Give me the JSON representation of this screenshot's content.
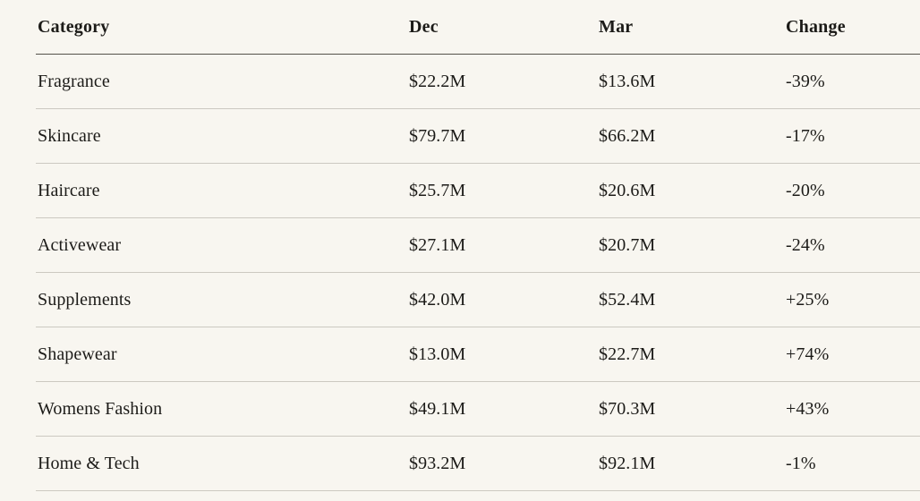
{
  "chart_data": {
    "type": "table",
    "columns": [
      "Category",
      "Dec",
      "Mar",
      "Change"
    ],
    "rows": [
      [
        "Fragrance",
        "$22.2M",
        "$13.6M",
        "-39%"
      ],
      [
        "Skincare",
        "$79.7M",
        "$66.2M",
        "-17%"
      ],
      [
        "Haircare",
        "$25.7M",
        "$20.6M",
        "-20%"
      ],
      [
        "Activewear",
        "$27.1M",
        "$20.7M",
        "-24%"
      ],
      [
        "Supplements",
        "$42.0M",
        "$52.4M",
        "+25%"
      ],
      [
        "Shapewear",
        "$13.0M",
        "$22.7M",
        "+74%"
      ],
      [
        "Womens Fashion",
        "$49.1M",
        "$70.3M",
        "+43%"
      ],
      [
        "Home & Tech",
        "$93.2M",
        "$92.1M",
        "-1%"
      ]
    ],
    "layout": {
      "grid": "horizontal-rules-only",
      "header_rule_color": "#55524a",
      "row_rule_color": "#ccc9c1"
    }
  },
  "colors": {
    "background": "#f8f6f0",
    "text": "#1c1b18",
    "header_rule": "#55524a",
    "row_rule": "#ccc9c1"
  }
}
